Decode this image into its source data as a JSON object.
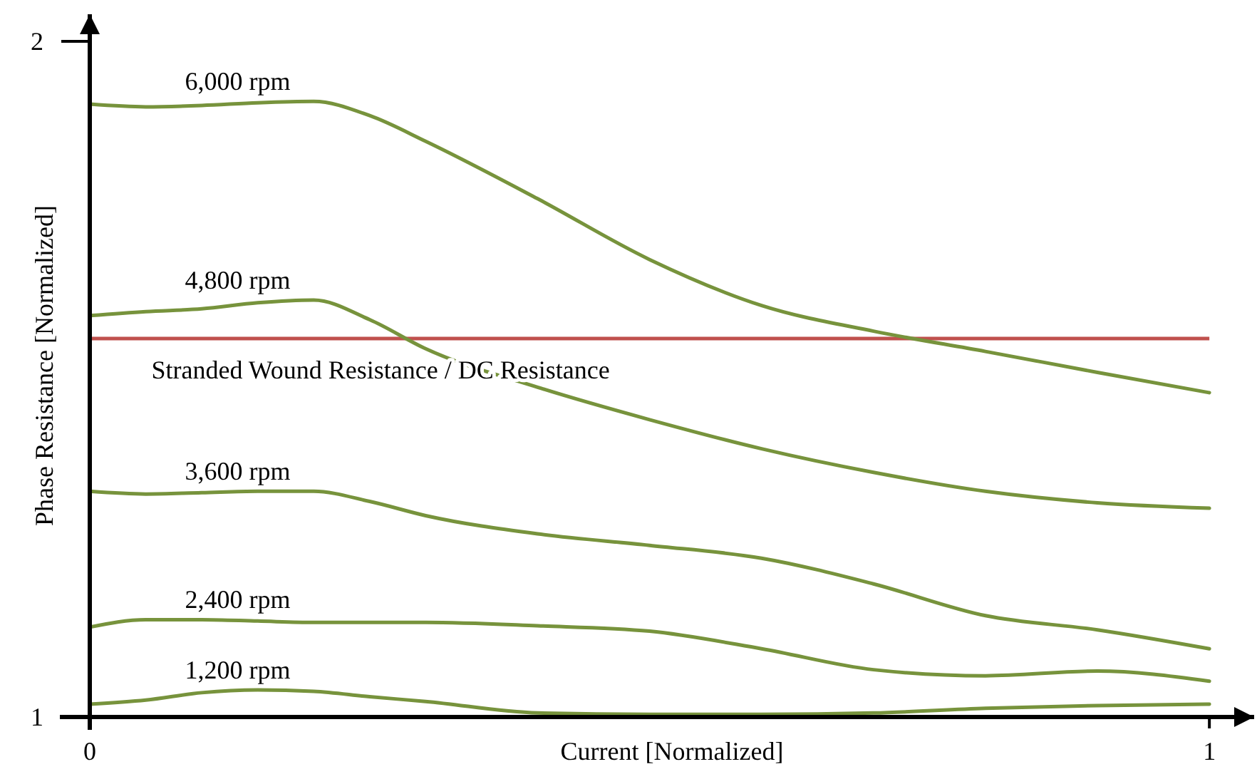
{
  "chart_data": {
    "type": "line",
    "xlabel": "Current [Normalized]",
    "ylabel": "Phase Resistance [Normalized]",
    "xlim": [
      0,
      1.04
    ],
    "ylim": [
      1,
      2.04
    ],
    "xticks": [
      0,
      1
    ],
    "yticks": [
      1,
      2
    ],
    "grid": false,
    "legend": false,
    "marker": "none",
    "line_style": "solid",
    "x": [
      0,
      0.05,
      0.1,
      0.15,
      0.2,
      0.25,
      0.3,
      0.4,
      0.5,
      0.6,
      0.7,
      0.8,
      0.9,
      1
    ],
    "series": [
      {
        "name": "6,000 rpm",
        "color": "#77933c",
        "values": [
          1.907,
          1.903,
          1.905,
          1.909,
          1.911,
          1.89,
          1.852,
          1.767,
          1.677,
          1.609,
          1.571,
          1.541,
          1.51,
          1.48
        ]
      },
      {
        "name": "4,800 rpm",
        "color": "#77933c",
        "values": [
          1.594,
          1.6,
          1.604,
          1.613,
          1.617,
          1.588,
          1.545,
          1.488,
          1.44,
          1.397,
          1.362,
          1.334,
          1.317,
          1.309
        ]
      },
      {
        "name": "3,600 rpm",
        "color": "#77933c",
        "values": [
          1.334,
          1.33,
          1.332,
          1.334,
          1.334,
          1.319,
          1.298,
          1.271,
          1.254,
          1.235,
          1.197,
          1.15,
          1.129,
          1.101
        ]
      },
      {
        "name": "2,400 rpm",
        "color": "#77933c",
        "values": [
          1.133,
          1.144,
          1.144,
          1.142,
          1.14,
          1.14,
          1.14,
          1.135,
          1.127,
          1.101,
          1.07,
          1.061,
          1.068,
          1.053
        ]
      },
      {
        "name": "1,200 rpm",
        "color": "#77933c",
        "values": [
          1.019,
          1.025,
          1.036,
          1.04,
          1.038,
          1.03,
          1.023,
          1.006,
          1.004,
          1.004,
          1.006,
          1.013,
          1.017,
          1.019
        ]
      }
    ],
    "ref_lines": [
      {
        "axis": "y",
        "value": 1.56,
        "label": "Stranded Wound Resistance / DC Resistance",
        "color": "#c0504d",
        "line_style": "solid"
      }
    ]
  }
}
